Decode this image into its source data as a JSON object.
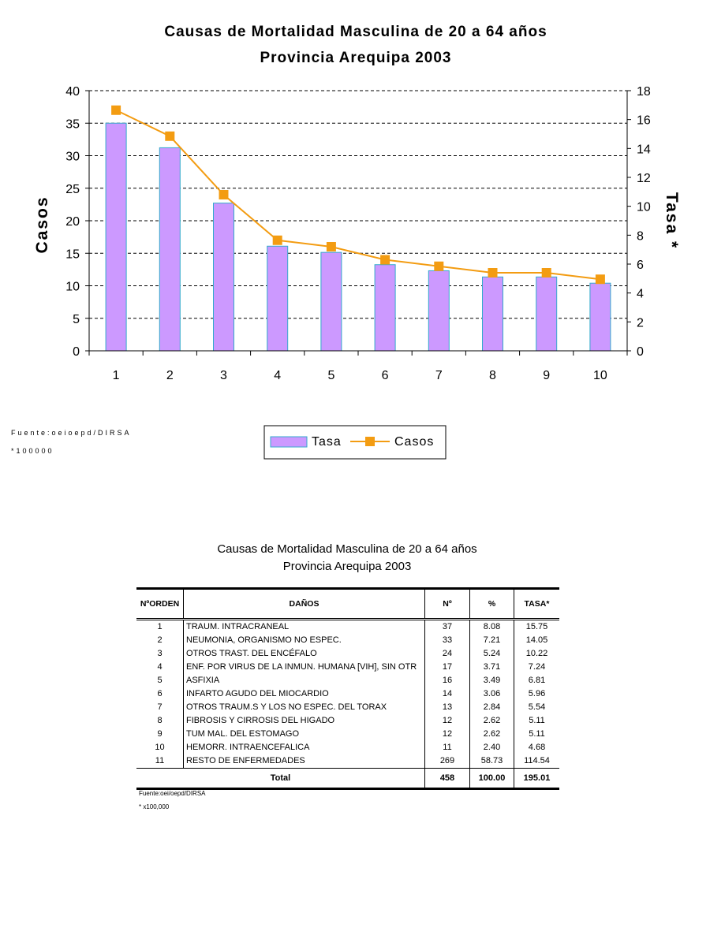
{
  "chart_data": {
    "type": "bar+line",
    "title": "Causas de Mortalidad Masculina de 20 a 64 años",
    "subtitle": "Provincia Arequipa 2003",
    "categories": [
      "1",
      "2",
      "3",
      "4",
      "5",
      "6",
      "7",
      "8",
      "9",
      "10"
    ],
    "ylabel_left": "Casos",
    "ylabel_right": "Tasa *",
    "ylim_left": [
      0,
      40
    ],
    "yticks_left": [
      "0",
      "5",
      "10",
      "15",
      "20",
      "25",
      "30",
      "35",
      "40"
    ],
    "ylim_right": [
      0,
      18
    ],
    "yticks_right": [
      "0",
      "2",
      "4",
      "6",
      "8",
      "10",
      "12",
      "14",
      "16",
      "18"
    ],
    "grid": true,
    "legend_position": "bottom",
    "series": [
      {
        "name": "Tasa",
        "type": "bar",
        "axis": "right",
        "color": "#cc99ff",
        "values": [
          15.75,
          14.05,
          10.22,
          7.24,
          6.81,
          5.96,
          5.54,
          5.11,
          5.11,
          4.68
        ]
      },
      {
        "name": "Casos",
        "type": "line",
        "axis": "left",
        "color": "#f39c12",
        "values": [
          37,
          33,
          24,
          17,
          16,
          14,
          13,
          12,
          12,
          11
        ]
      }
    ]
  },
  "chart_notes": {
    "source": "Fuente:oeioepd/DIRSA",
    "footnote": "*100000"
  },
  "table": {
    "title": "Causas de Mortalidad Masculina de 20 a 64 años",
    "subtitle": "Provincia Arequipa 2003",
    "headers": [
      "NºORDEN",
      "DAÑOS",
      "Nº",
      "%",
      "TASA*"
    ],
    "rows": [
      [
        "1",
        "TRAUM. INTRACRANEAL",
        "37",
        "8.08",
        "15.75"
      ],
      [
        "2",
        "NEUMONIA, ORGANISMO NO ESPEC.",
        "33",
        "7.21",
        "14.05"
      ],
      [
        "3",
        "OTROS TRAST. DEL ENCÉFALO",
        "24",
        "5.24",
        "10.22"
      ],
      [
        "4",
        "ENF. POR VIRUS DE LA INMUN. HUMANA [VIH], SIN OTR",
        "17",
        "3.71",
        "7.24"
      ],
      [
        "5",
        "ASFIXIA",
        "16",
        "3.49",
        "6.81"
      ],
      [
        "6",
        "INFARTO AGUDO DEL MIOCARDIO",
        "14",
        "3.06",
        "5.96"
      ],
      [
        "7",
        "OTROS TRAUM.S Y LOS NO ESPEC. DEL TORAX",
        "13",
        "2.84",
        "5.54"
      ],
      [
        "8",
        "FIBROSIS Y CIRROSIS DEL HIGADO",
        "12",
        "2.62",
        "5.11"
      ],
      [
        "9",
        "TUM MAL. DEL ESTOMAGO",
        "12",
        "2.62",
        "5.11"
      ],
      [
        "10",
        "HEMORR. INTRAENCEFALICA",
        "11",
        "2.40",
        "4.68"
      ],
      [
        "11",
        "RESTO DE ENFERMEDADES",
        "269",
        "58.73",
        "114.54"
      ]
    ],
    "total": {
      "label": "Total",
      "n": "458",
      "pct": "100.00",
      "tasa": "195.01"
    },
    "source": "Fuente:oei/oepd/DIRSA",
    "footnote": "* x100,000"
  }
}
